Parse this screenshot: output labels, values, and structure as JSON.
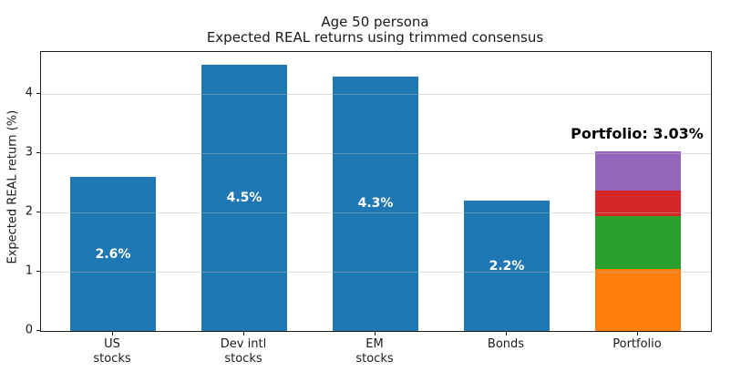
{
  "chart_data": {
    "type": "bar",
    "title": "Age 50 persona",
    "subtitle": "Expected REAL returns using trimmed consensus",
    "ylabel": "Expected REAL return (%)",
    "xlabel": "",
    "ylim": [
      0,
      4.71
    ],
    "yticks": [
      0,
      1,
      2,
      3,
      4
    ],
    "grid": true,
    "legend_position": "none",
    "background_color": "#ffffff",
    "categories": [
      [
        "US",
        "stocks"
      ],
      [
        "Dev intl",
        "stocks"
      ],
      [
        "EM",
        "stocks"
      ],
      [
        "Bonds"
      ],
      [
        "Portfolio"
      ]
    ],
    "bars": [
      {
        "name": "us-stocks",
        "value": 2.6,
        "label": "2.6%",
        "color": "#1f77b4"
      },
      {
        "name": "dev-intl-stocks",
        "value": 4.5,
        "label": "4.5%",
        "color": "#1f77b4"
      },
      {
        "name": "em-stocks",
        "value": 4.3,
        "label": "4.3%",
        "color": "#1f77b4"
      },
      {
        "name": "bonds",
        "value": 2.2,
        "label": "2.2%",
        "color": "#1f77b4"
      },
      {
        "name": "portfolio",
        "value": 3.03,
        "annotation": "Portfolio: 3.03%",
        "segments": [
          {
            "name": "us-stocks-contribution",
            "value": 1.04,
            "color": "#ff7f0e"
          },
          {
            "name": "dev-intl-stocks-contribution",
            "value": 0.9,
            "color": "#2ca02c"
          },
          {
            "name": "em-stocks-contribution",
            "value": 0.43,
            "color": "#d62728"
          },
          {
            "name": "bonds-contribution",
            "value": 0.66,
            "color": "#9467bd"
          }
        ]
      }
    ]
  }
}
